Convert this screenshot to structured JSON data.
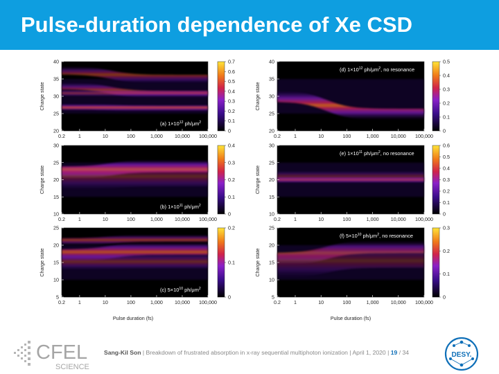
{
  "slide": {
    "title": "Pulse-duration dependence of Xe CSD",
    "footer": {
      "author": "Sang-Kil Son",
      "sep": "|",
      "talk": "Breakdown of frustrated absorption in x-ray sequential multiphoton ionization",
      "date": "April 1, 2020",
      "page": "19",
      "total": "/ 34"
    },
    "logos": {
      "cfel_main": "CFEL",
      "cfel_sub": "SCIENCE",
      "desy": "DESY."
    }
  },
  "chart_data": [
    {
      "type": "heatmap",
      "panel": "(a) 1×10",
      "exp": "12",
      "unit": " ph/μm",
      "unit_exp": "2",
      "note": "",
      "xlabel": "",
      "ylabel": "Charge state",
      "x_ticks": [
        "0.2",
        "1",
        "10",
        "100",
        "1,000",
        "10,000",
        "100,000"
      ],
      "y_ticks": [
        "20",
        "25",
        "30",
        "35",
        "40"
      ],
      "ylim": [
        20,
        40
      ],
      "cb_ticks": [
        "0",
        "0.1",
        "0.2",
        "0.3",
        "0.4",
        "0.5",
        "0.6",
        "0.7"
      ],
      "cb_max": 0.7,
      "ridges": [
        {
          "y0": 37.5,
          "y1": 35,
          "w": 1.2,
          "a": 0.55
        },
        {
          "y0": 33,
          "y1": 30.5,
          "w": 1.0,
          "a": 0.6
        },
        {
          "y0": 31,
          "y1": 30.8,
          "w": 0.8,
          "a": 0.55
        },
        {
          "y0": 27,
          "y1": 26.5,
          "w": 0.8,
          "a": 0.8
        }
      ]
    },
    {
      "type": "heatmap",
      "panel": "(b) 1×10",
      "exp": "11",
      "unit": " ph/μm",
      "unit_exp": "2",
      "note": "",
      "xlabel": "",
      "ylabel": "Charge state",
      "x_ticks": [
        "0.2",
        "1",
        "10",
        "100",
        "1,000",
        "10,000",
        "100,000"
      ],
      "y_ticks": [
        "10",
        "15",
        "20",
        "25",
        "30"
      ],
      "ylim": [
        10,
        30
      ],
      "cb_ticks": [
        "0",
        "0.1",
        "0.2",
        "0.3",
        "0.4"
      ],
      "cb_max": 0.4,
      "ridges": [
        {
          "y0": 22,
          "y1": 24,
          "w": 1.8,
          "a": 0.85
        },
        {
          "y0": 20.5,
          "y1": 21.5,
          "w": 3.5,
          "a": 0.35
        }
      ]
    },
    {
      "type": "heatmap",
      "panel": "(c) 5×10",
      "exp": "10",
      "unit": " ph/μm",
      "unit_exp": "2",
      "note": "",
      "xlabel": "Pulse duration (fs)",
      "ylabel": "Charge state",
      "x_ticks": [
        "0.2",
        "1",
        "10",
        "100",
        "1,000",
        "10,000",
        "100,000"
      ],
      "y_ticks": [
        "5",
        "10",
        "15",
        "20",
        "25"
      ],
      "ylim": [
        5,
        25
      ],
      "cb_ticks": [
        "0",
        "0.1",
        "0.2"
      ],
      "cb_max": 0.2,
      "ridges": [
        {
          "y0": 17,
          "y1": 19,
          "w": 1.8,
          "a": 0.75
        },
        {
          "y0": 21,
          "y1": 22,
          "w": 1.0,
          "a": 0.6
        },
        {
          "y0": 15,
          "y1": 15.5,
          "w": 2.2,
          "a": 0.4
        }
      ]
    },
    {
      "type": "heatmap",
      "panel": "(d) 1×10",
      "exp": "12",
      "unit": " ph/μm",
      "unit_exp": "2",
      "note": ", no resonance",
      "xlabel": "",
      "ylabel": "Charge state",
      "x_ticks": [
        "0.2",
        "1",
        "10",
        "100",
        "1,000",
        "10,000",
        "100,000"
      ],
      "y_ticks": [
        "20",
        "25",
        "30",
        "35",
        "40"
      ],
      "ylim": [
        20,
        40
      ],
      "cb_ticks": [
        "0",
        "0.1",
        "0.2",
        "0.3",
        "0.4",
        "0.5"
      ],
      "cb_max": 0.5,
      "ridges": [
        {
          "y0": 30,
          "y1": 24.8,
          "w": 1.6,
          "a": 0.8
        }
      ]
    },
    {
      "type": "heatmap",
      "panel": "(e) 1×10",
      "exp": "11",
      "unit": " ph/μm",
      "unit_exp": "2",
      "note": ", no resonance",
      "xlabel": "",
      "ylabel": "Charge state",
      "x_ticks": [
        "0.2",
        "1",
        "10",
        "100",
        "1,000",
        "10,000",
        "100,000"
      ],
      "y_ticks": [
        "10",
        "15",
        "20",
        "25",
        "30"
      ],
      "ylim": [
        10,
        30
      ],
      "cb_ticks": [
        "0",
        "0.1",
        "0.2",
        "0.3",
        "0.4",
        "0.5",
        "0.6"
      ],
      "cb_max": 0.6,
      "ridges": [
        {
          "y0": 20,
          "y1": 20,
          "w": 0.9,
          "a": 0.75
        },
        {
          "y0": 21,
          "y1": 21,
          "w": 1.6,
          "a": 0.35
        }
      ]
    },
    {
      "type": "heatmap",
      "panel": "(f) 5×10",
      "exp": "10",
      "unit": " ph/μm",
      "unit_exp": "2",
      "note": ", no resonance",
      "xlabel": "Pulse duration (fs)",
      "ylabel": "Charge state",
      "x_ticks": [
        "0.2",
        "1",
        "10",
        "100",
        "1,000",
        "10,000",
        "100,000"
      ],
      "y_ticks": [
        "5",
        "10",
        "15",
        "20",
        "25"
      ],
      "ylim": [
        5,
        25
      ],
      "cb_ticks": [
        "0",
        "0.1",
        "0.2",
        "0.3"
      ],
      "cb_max": 0.3,
      "ridges": [
        {
          "y0": 16,
          "y1": 19.5,
          "w": 1.8,
          "a": 0.6
        },
        {
          "y0": 14,
          "y1": 17,
          "w": 3.5,
          "a": 0.3
        }
      ]
    }
  ]
}
